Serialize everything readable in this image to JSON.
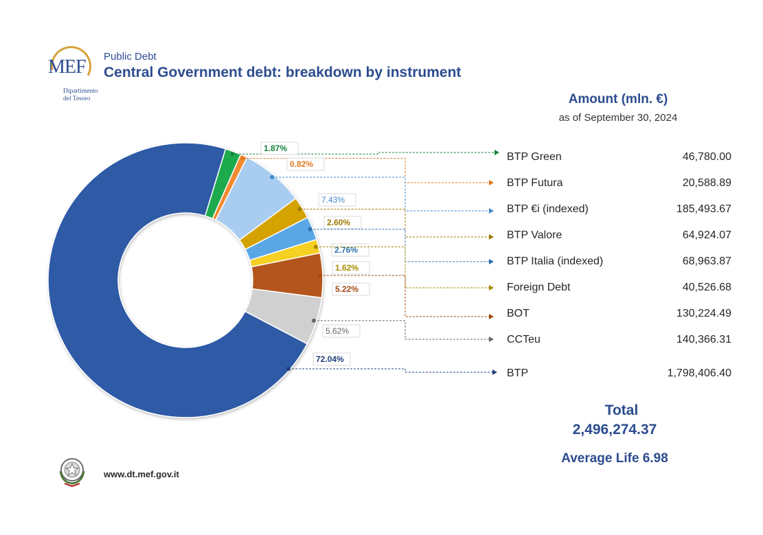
{
  "header": {
    "logo_text": "MEF",
    "logo_dept_line1": "Dipartimento",
    "logo_dept_line2": "del Tesoro",
    "kicker": "Public Debt",
    "title": "Central Government debt: breakdown by instrument"
  },
  "table": {
    "heading": "Amount (mln. €)",
    "as_of": "as of September 30, 2024",
    "rows": [
      {
        "label": "BTP Green",
        "value": "46,780.00"
      },
      {
        "label": "BTP Futura",
        "value": "20,588.89"
      },
      {
        "label": "BTP €i (indexed)",
        "value": "185,493.67"
      },
      {
        "label": "BTP Valore",
        "value": "64,924.07"
      },
      {
        "label": "BTP Italia (indexed)",
        "value": "68,963.87"
      },
      {
        "label": "Foreign Debt",
        "value": "40,526.68"
      },
      {
        "label": "BOT",
        "value": "130,224.49"
      },
      {
        "label": "CCTeu",
        "value": "140,366.31"
      },
      {
        "label": "BTP",
        "value": "1,798,406.40"
      }
    ]
  },
  "totals": {
    "total_label": "Total",
    "total_value": "2,496,274.37",
    "average_life": "Average Life 6.98"
  },
  "footer": {
    "website": "www.dt.mef.gov.it"
  },
  "chart_data": {
    "type": "pie",
    "title": "",
    "categories": [
      "BTP Green",
      "BTP Futura",
      "BTP €i (indexed)",
      "BTP Valore",
      "BTP Italia (indexed)",
      "Foreign Debt",
      "BOT",
      "CCTeu",
      "BTP"
    ],
    "values": [
      1.87,
      0.82,
      7.43,
      2.6,
      2.76,
      1.62,
      5.22,
      5.62,
      72.04
    ],
    "labels": [
      "1.87%",
      "0.82%",
      "7.43%",
      "2.60%",
      "2.76%",
      "1.62%",
      "5.22%",
      "5.62%",
      "72.04%"
    ],
    "colors": [
      "#1faa4e",
      "#f28a30",
      "#a9cdf0",
      "#d4a300",
      "#5aa7e6",
      "#f6d023",
      "#b3541a",
      "#d0d0d0",
      "#2f5aa6"
    ],
    "label_colors": [
      "#17843c",
      "#e07820",
      "#3f87c9",
      "#a07b00",
      "#2f6fae",
      "#a68a00",
      "#a04a12",
      "#666666",
      "#1f3f7a"
    ],
    "donut": true
  }
}
